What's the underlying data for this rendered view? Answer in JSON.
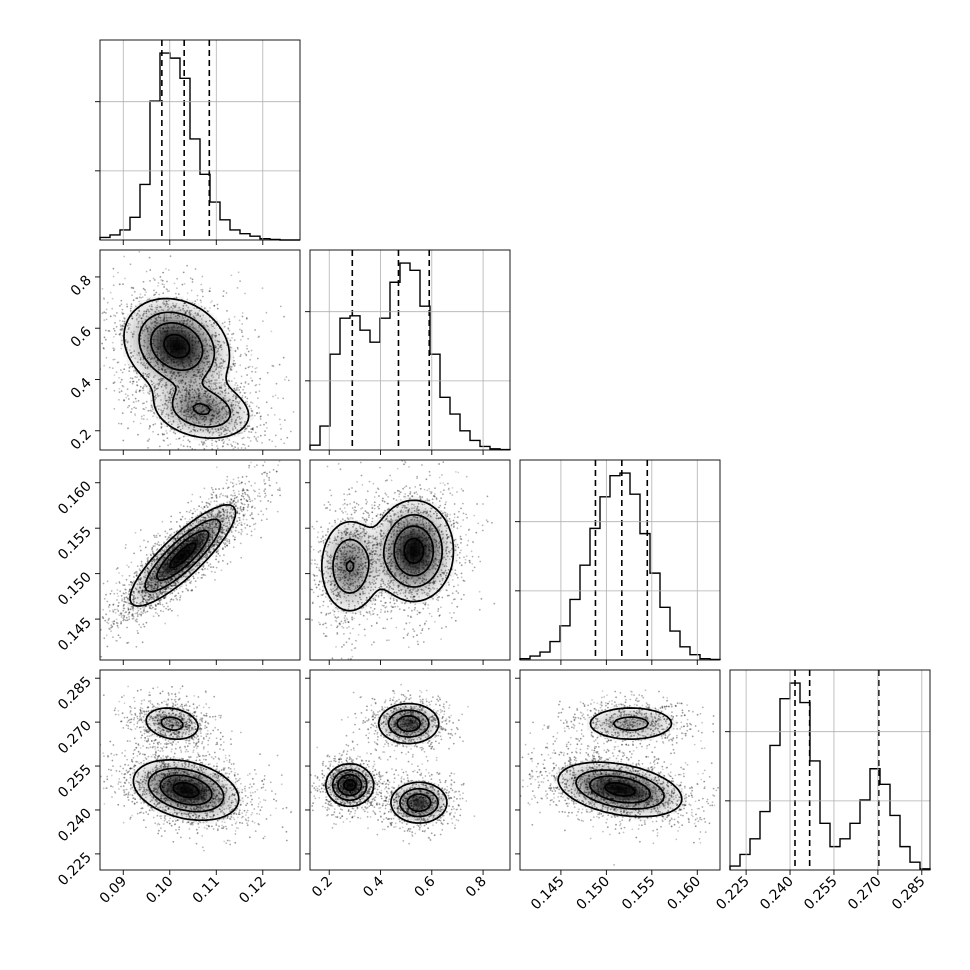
{
  "chart_data": {
    "type": "corner",
    "parameters": [
      {
        "range": [
          0.085,
          0.128
        ],
        "ticks": [
          0.09,
          0.1,
          0.11,
          0.12
        ],
        "tick_labels": [
          "0.09",
          "0.10",
          "0.11",
          "0.12"
        ],
        "quantiles": [
          0.0983,
          0.1031,
          0.1085
        ],
        "hist": [
          1,
          2,
          4,
          9,
          22,
          55,
          74,
          72,
          64,
          40,
          26,
          15,
          8,
          4,
          2.5,
          1.5,
          0.5,
          0.2,
          0,
          0
        ]
      },
      {
        "range": [
          0.125,
          0.905
        ],
        "ticks": [
          0.2,
          0.4,
          0.6,
          0.8
        ],
        "tick_labels": [
          "0.2",
          "0.4",
          "0.6",
          "0.8"
        ],
        "quantiles": [
          0.29,
          0.47,
          0.59
        ],
        "hist": [
          2,
          10,
          40,
          55,
          56,
          50,
          45,
          55,
          70,
          78,
          75,
          60,
          40,
          22,
          15,
          8,
          4,
          1.5,
          0.5,
          0.2
        ]
      },
      {
        "range": [
          0.1405,
          0.1625
        ],
        "ticks": [
          0.145,
          0.15,
          0.155,
          0.16
        ],
        "tick_labels": [
          "0.145",
          "0.150",
          "0.155",
          "0.160"
        ],
        "quantiles": [
          0.1488,
          0.1517,
          0.1545
        ],
        "hist": [
          0.5,
          1.5,
          3,
          7,
          13,
          23,
          36,
          50,
          62,
          70,
          71,
          63,
          48,
          33,
          20,
          11,
          5,
          2,
          0.5,
          0.2
        ]
      },
      {
        "range": [
          0.2195,
          0.2878
        ],
        "ticks": [
          0.225,
          0.24,
          0.255,
          0.27,
          0.285
        ],
        "tick_labels": [
          "0.225",
          "0.240",
          "0.255",
          "0.270",
          "0.285"
        ],
        "quantiles": [
          0.2417,
          0.2467,
          0.2703
        ],
        "hist": [
          1,
          4,
          8,
          15,
          32,
          44,
          48,
          43,
          28,
          12,
          6,
          8,
          12,
          18,
          26,
          22,
          14,
          6,
          2,
          0.3
        ]
      }
    ],
    "pairs": [
      {
        "row": 1,
        "col": 0,
        "modes": [
          {
            "mean": [
              0.1015,
              0.53
            ],
            "sd": [
              0.0055,
              0.09
            ],
            "rho": -0.2,
            "w": 0.62
          },
          {
            "mean": [
              0.107,
              0.28
            ],
            "sd": [
              0.0055,
              0.06
            ],
            "rho": -0.2,
            "w": 0.38
          }
        ]
      },
      {
        "row": 2,
        "col": 0,
        "modes": [
          {
            "mean": [
              0.1028,
              0.152
            ],
            "sd": [
              0.0055,
              0.0027
            ],
            "rho": 0.85,
            "w": 1.0
          }
        ]
      },
      {
        "row": 2,
        "col": 1,
        "modes": [
          {
            "mean": [
              0.53,
              0.1525
            ],
            "sd": [
              0.075,
              0.0027
            ],
            "rho": 0.0,
            "w": 0.62
          },
          {
            "mean": [
              0.28,
              0.1508
            ],
            "sd": [
              0.06,
              0.0027
            ],
            "rho": 0.0,
            "w": 0.38
          }
        ]
      },
      {
        "row": 3,
        "col": 0,
        "modes": [
          {
            "mean": [
              0.1005,
              0.2695
            ],
            "sd": [
              0.0035,
              0.0033
            ],
            "rho": -0.2,
            "w": 0.3
          },
          {
            "mean": [
              0.1035,
              0.2468
            ],
            "sd": [
              0.0055,
              0.005
            ],
            "rho": -0.3,
            "w": 0.7
          }
        ]
      },
      {
        "row": 3,
        "col": 1,
        "modes": [
          {
            "mean": [
              0.51,
              0.2695
            ],
            "sd": [
              0.06,
              0.0035
            ],
            "rho": 0.0,
            "w": 0.3
          },
          {
            "mean": [
              0.28,
              0.2485
            ],
            "sd": [
              0.045,
              0.0035
            ],
            "rho": 0.0,
            "w": 0.38
          },
          {
            "mean": [
              0.55,
              0.2425
            ],
            "sd": [
              0.055,
              0.0035
            ],
            "rho": 0.0,
            "w": 0.32
          }
        ]
      },
      {
        "row": 3,
        "col": 2,
        "modes": [
          {
            "mean": [
              0.1527,
              0.2695
            ],
            "sd": [
              0.0028,
              0.0033
            ],
            "rho": 0.0,
            "w": 0.3
          },
          {
            "mean": [
              0.1515,
              0.247
            ],
            "sd": [
              0.0033,
              0.0045
            ],
            "rho": -0.35,
            "w": 0.7
          }
        ]
      }
    ],
    "grid": true,
    "contour_levels": 4
  }
}
